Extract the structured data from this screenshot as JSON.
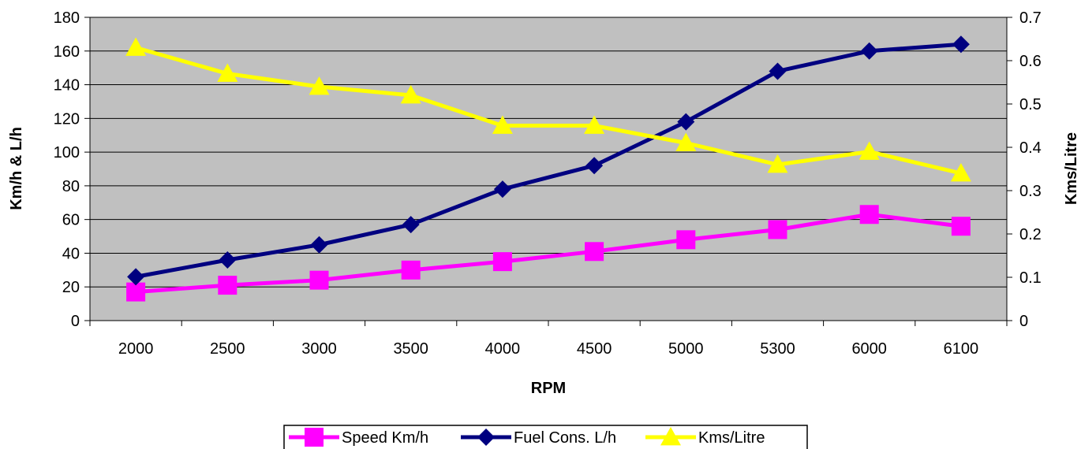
{
  "chart_data": {
    "type": "line",
    "categories": [
      "2000",
      "2500",
      "3000",
      "3500",
      "4000",
      "4500",
      "5000",
      "5300",
      "6000",
      "6100"
    ],
    "xlabel": "RPM",
    "ylabel": "Km/h & L/h",
    "y2label": "Kms/Litre",
    "ylim": [
      0,
      180
    ],
    "y_ticks": [
      0,
      20,
      40,
      60,
      80,
      100,
      120,
      140,
      160,
      180
    ],
    "y2lim": [
      0,
      0.7
    ],
    "y2_ticks": [
      "0",
      "0.1",
      "0.2",
      "0.3",
      "0.4",
      "0.5",
      "0.6",
      "0.7"
    ],
    "grid": true,
    "legend_position": "bottom",
    "plot_background": "#C0C0C0",
    "series": [
      {
        "name": "Speed Km/h",
        "axis": "left",
        "marker": "square",
        "color": "#FF00FF",
        "values": [
          17,
          21,
          24,
          30,
          35,
          41,
          48,
          54,
          63,
          56
        ]
      },
      {
        "name": "Fuel Cons. L/h",
        "axis": "left",
        "marker": "diamond",
        "color": "#000080",
        "values": [
          26,
          36,
          45,
          57,
          78,
          92,
          118,
          148,
          160,
          164
        ]
      },
      {
        "name": "Kms/Litre",
        "axis": "right",
        "marker": "triangle",
        "color": "#FFFF00",
        "values": [
          0.63,
          0.57,
          0.54,
          0.52,
          0.45,
          0.45,
          0.41,
          0.36,
          0.39,
          0.34
        ]
      }
    ]
  }
}
